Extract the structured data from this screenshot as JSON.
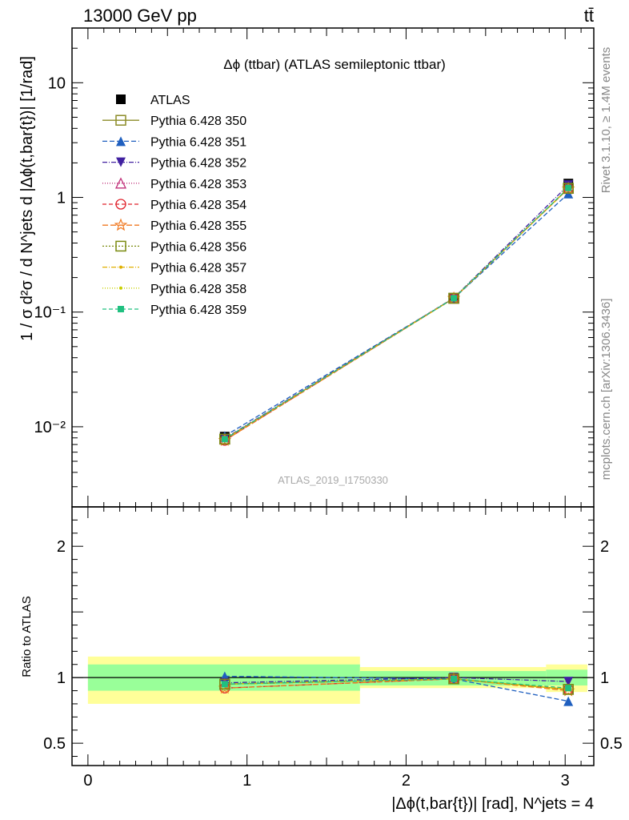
{
  "header": {
    "energy_label": "13000 GeV pp",
    "process_label": "tt̄"
  },
  "side_labels": {
    "rivet": "Rivet 3.1.10, ≥ 1.4M events",
    "mcplots": "mcplots.cern.ch [arXiv:1306.3436]"
  },
  "chart_data": [
    {
      "type": "scatter",
      "title": "Δϕ (ttbar) (ATLAS semileptonic ttbar)",
      "watermark": "ATLAS_2019_I1750330",
      "ylabel": "1 / σ d²σ / d N^jets d |Δϕ(t,bar{t})| [1/rad]",
      "yscale": "log",
      "ylim": [
        0.002,
        30
      ],
      "xlim": [
        -0.1,
        3.18
      ],
      "y_ticks": [
        {
          "value": 0.01,
          "label": "10⁻²"
        },
        {
          "value": 0.1,
          "label": "10⁻¹"
        },
        {
          "value": 1,
          "label": "1"
        },
        {
          "value": 10,
          "label": "10"
        }
      ],
      "x": [
        0.86,
        2.3,
        3.02
      ],
      "legend_position": "top-left",
      "series": [
        {
          "name": "ATLAS",
          "color": "#000000",
          "marker": "filled-square",
          "values": [
            0.0082,
            0.133,
            1.32
          ]
        },
        {
          "name": "Pythia 6.428 350",
          "color": "#8b8b27",
          "marker": "open-square",
          "dash": "solid",
          "values": [
            0.0078,
            0.132,
            1.2
          ]
        },
        {
          "name": "Pythia 6.428 351",
          "color": "#1f5fbf",
          "marker": "filled-triangle-up",
          "dash": "6,3",
          "values": [
            0.0083,
            0.132,
            1.08
          ]
        },
        {
          "name": "Pythia 6.428 352",
          "color": "#4020a0",
          "marker": "filled-triangle-down",
          "dash": "6,2,1,2",
          "values": [
            0.0079,
            0.133,
            1.28
          ]
        },
        {
          "name": "Pythia 6.428 353",
          "color": "#c0307a",
          "marker": "open-triangle-up",
          "dash": "1,2",
          "values": [
            0.0078,
            0.132,
            1.2
          ]
        },
        {
          "name": "Pythia 6.428 354",
          "color": "#e0202a",
          "marker": "open-circle",
          "dash": "5,3",
          "values": [
            0.0076,
            0.132,
            1.2
          ]
        },
        {
          "name": "Pythia 6.428 355",
          "color": "#f07820",
          "marker": "open-star",
          "dash": "7,3",
          "values": [
            0.0076,
            0.132,
            1.19
          ]
        },
        {
          "name": "Pythia 6.428 356",
          "color": "#7a8a10",
          "marker": "open-square",
          "dash": "2,2",
          "values": [
            0.0078,
            0.132,
            1.2
          ]
        },
        {
          "name": "Pythia 6.428 357",
          "color": "#e0b000",
          "marker": "dot",
          "dash": "6,2,1,2",
          "values": [
            0.0078,
            0.132,
            1.2
          ]
        },
        {
          "name": "Pythia 6.428 358",
          "color": "#c8d000",
          "marker": "dot",
          "dash": "1,2",
          "values": [
            0.0078,
            0.132,
            1.2
          ]
        },
        {
          "name": "Pythia 6.428 359",
          "color": "#20c080",
          "marker": "filled-square-small",
          "dash": "5,3",
          "values": [
            0.0078,
            0.132,
            1.21
          ]
        }
      ]
    },
    {
      "type": "line",
      "ylabel": "Ratio to ATLAS",
      "xlabel": "|Δϕ(t,bar{t})| [rad], N^jets = 4",
      "ylim": [
        0.33,
        2.3
      ],
      "xlim": [
        -0.1,
        3.18
      ],
      "x_ticks": [
        0,
        1,
        2,
        3
      ],
      "y_ticks": [
        0.5,
        1,
        2
      ],
      "bands": [
        {
          "x_low": 0.0,
          "x_high": 1.71,
          "inner": [
            0.9,
            1.1
          ],
          "outer": [
            0.8,
            1.16
          ]
        },
        {
          "x_low": 1.71,
          "x_high": 2.88,
          "inner": [
            0.94,
            1.05
          ],
          "outer": [
            0.92,
            1.08
          ]
        },
        {
          "x_low": 2.88,
          "x_high": 3.14,
          "inner": [
            0.94,
            1.06
          ],
          "outer": [
            0.89,
            1.1
          ]
        }
      ],
      "band_colors": {
        "inner": "#99ff99",
        "outer": "#ffff99"
      },
      "x": [
        0.86,
        2.3,
        3.02
      ],
      "series": [
        {
          "name": "Pythia 6.428 350",
          "values": [
            0.95,
            0.99,
            0.91
          ]
        },
        {
          "name": "Pythia 6.428 351",
          "values": [
            1.01,
            0.99,
            0.82
          ]
        },
        {
          "name": "Pythia 6.428 352",
          "values": [
            0.96,
            1.0,
            0.97
          ]
        },
        {
          "name": "Pythia 6.428 353",
          "values": [
            0.95,
            0.99,
            0.91
          ]
        },
        {
          "name": "Pythia 6.428 354",
          "values": [
            0.92,
            0.99,
            0.91
          ]
        },
        {
          "name": "Pythia 6.428 355",
          "values": [
            0.92,
            0.99,
            0.9
          ]
        },
        {
          "name": "Pythia 6.428 356",
          "values": [
            0.95,
            0.99,
            0.91
          ]
        },
        {
          "name": "Pythia 6.428 357",
          "values": [
            0.95,
            0.99,
            0.91
          ]
        },
        {
          "name": "Pythia 6.428 358",
          "values": [
            0.95,
            0.99,
            0.91
          ]
        },
        {
          "name": "Pythia 6.428 359",
          "values": [
            0.95,
            0.99,
            0.92
          ]
        }
      ]
    }
  ]
}
